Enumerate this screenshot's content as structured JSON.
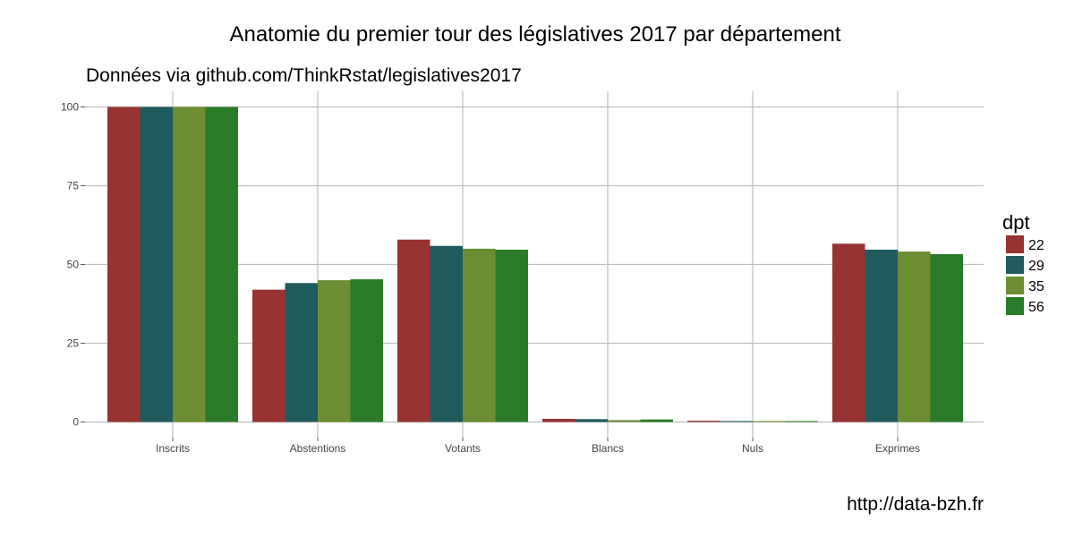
{
  "chart_data": {
    "type": "bar",
    "title": "Anatomie du premier tour des législatives 2017 par département",
    "subtitle": "Données via github.com/ThinkRstat/legislatives2017",
    "caption": "http://data-bzh.fr",
    "xlabel": "",
    "ylabel": "",
    "categories": [
      "Inscrits",
      "Abstentions",
      "Votants",
      "Blancs",
      "Nuls",
      "Exprimes"
    ],
    "ylim": [
      0,
      105
    ],
    "yticks": [
      0,
      25,
      50,
      75,
      100
    ],
    "grid": true,
    "legend": {
      "title": "dpt",
      "position": "right"
    },
    "series": [
      {
        "name": "22",
        "color": "#983334",
        "values": [
          100,
          42.0,
          57.9,
          1.0,
          0.4,
          56.6
        ]
      },
      {
        "name": "29",
        "color": "#1f5b5d",
        "values": [
          100,
          44.1,
          55.9,
          0.9,
          0.3,
          54.7
        ]
      },
      {
        "name": "35",
        "color": "#6c8d32",
        "values": [
          100,
          45.0,
          55.0,
          0.6,
          0.3,
          54.1
        ]
      },
      {
        "name": "56",
        "color": "#2a7b28",
        "values": [
          100,
          45.3,
          54.7,
          0.8,
          0.3,
          53.3
        ]
      }
    ]
  }
}
